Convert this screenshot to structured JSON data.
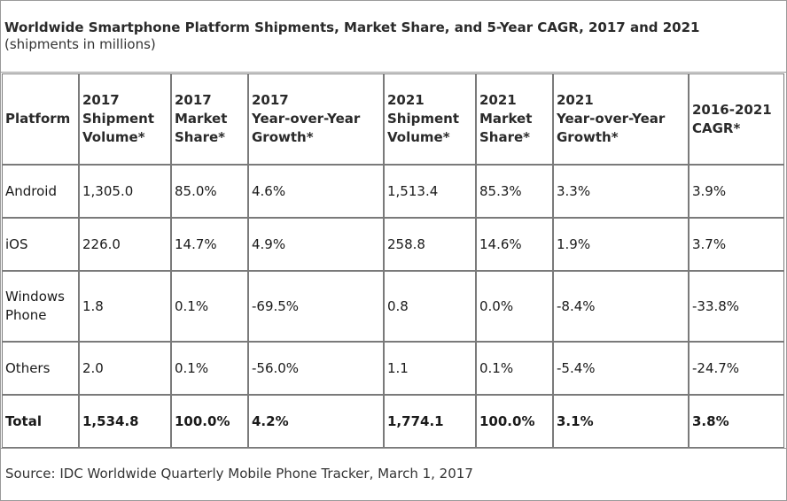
{
  "title": "Worldwide Smartphone Platform Shipments, Market Share, and 5-Year CAGR, 2017 and 2021",
  "subtitle": "(shipments in millions)",
  "headers": {
    "platform": "Platform",
    "ship2017": [
      "2017",
      "Shipment",
      "Volume*"
    ],
    "share2017": [
      "2017",
      "Market",
      "Share*"
    ],
    "growth2017": [
      "2017",
      "Year-over-Year",
      "Growth*"
    ],
    "ship2021": [
      "2021",
      "Shipment",
      "Volume*"
    ],
    "share2021": [
      "2021",
      "Market",
      "Share*"
    ],
    "growth2021": [
      "2021",
      "Year-over-Year",
      "Growth*"
    ],
    "cagr": [
      "2016-2021",
      "CAGR*"
    ]
  },
  "rows": [
    {
      "platform": "Android",
      "ship2017": "1,305.0",
      "share2017": "85.0%",
      "growth2017": "4.6%",
      "ship2021": "1,513.4",
      "share2021": "85.3%",
      "growth2021": "3.3%",
      "cagr": "3.9%"
    },
    {
      "platform": "iOS",
      "ship2017": "226.0",
      "share2017": "14.7%",
      "growth2017": "4.9%",
      "ship2021": "258.8",
      "share2021": "14.6%",
      "growth2021": "1.9%",
      "cagr": "3.7%"
    },
    {
      "platform": "Windows Phone",
      "ship2017": "1.8",
      "share2017": "0.1%",
      "growth2017": "-69.5%",
      "ship2021": "0.8",
      "share2021": "0.0%",
      "growth2021": "-8.4%",
      "cagr": "-33.8%"
    },
    {
      "platform": "Others",
      "ship2017": "2.0",
      "share2017": "0.1%",
      "growth2017": "-56.0%",
      "ship2021": "1.1",
      "share2021": "0.1%",
      "growth2021": "-5.4%",
      "cagr": "-24.7%"
    },
    {
      "platform": "Total",
      "ship2017": "1,534.8",
      "share2017": "100.0%",
      "growth2017": "4.2%",
      "ship2021": "1,774.1",
      "share2021": "100.0%",
      "growth2021": "3.1%",
      "cagr": "3.8%"
    }
  ],
  "source": "Source: IDC Worldwide Quarterly Mobile Phone Tracker, March 1, 2017"
}
